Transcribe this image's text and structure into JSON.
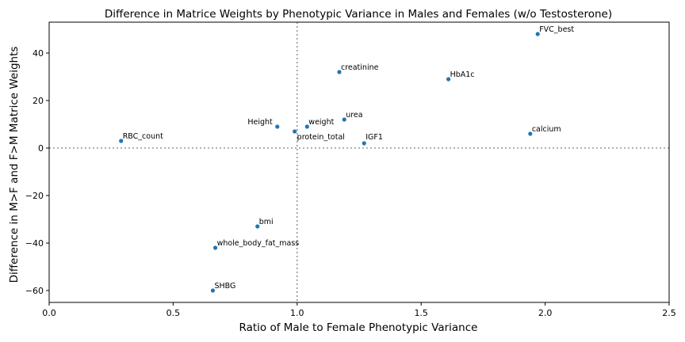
{
  "chart_data": {
    "type": "scatter",
    "title": "Difference in Matrice Weights by Phenotypic Variance in Males and Females (w/o Testosterone)",
    "xlabel": "Ratio of Male to Female Phenotypic Variance",
    "ylabel": "Difference in M>F and F>M Matrice Weights",
    "xlim": [
      0.0,
      2.5
    ],
    "ylim": [
      -65,
      53
    ],
    "xticks": [
      0.0,
      0.5,
      1.0,
      1.5,
      2.0,
      2.5
    ],
    "xtick_labels": [
      "0.0",
      "0.5",
      "1.0",
      "1.5",
      "2.0",
      "2.5"
    ],
    "yticks": [
      -60,
      -40,
      -20,
      0,
      20,
      40
    ],
    "ytick_labels": [
      "−60",
      "−40",
      "−20",
      "0",
      "20",
      "40"
    ],
    "reference_lines": {
      "vertical_x": 1.0,
      "horizontal_y": 0
    },
    "grid": false,
    "marker_color": "#1f77b4",
    "points": [
      {
        "label": "FVC_best",
        "x": 1.97,
        "y": 48
      },
      {
        "label": "creatinine",
        "x": 1.17,
        "y": 32
      },
      {
        "label": "HbA1c",
        "x": 1.61,
        "y": 29
      },
      {
        "label": "urea",
        "x": 1.19,
        "y": 12
      },
      {
        "label": "Height",
        "x": 0.92,
        "y": 9
      },
      {
        "label": "weight",
        "x": 1.04,
        "y": 9
      },
      {
        "label": "protein_total",
        "x": 0.99,
        "y": 7
      },
      {
        "label": "calcium",
        "x": 1.94,
        "y": 6
      },
      {
        "label": "RBC_count",
        "x": 0.29,
        "y": 3
      },
      {
        "label": "IGF1",
        "x": 1.27,
        "y": 2
      },
      {
        "label": "bmi",
        "x": 0.84,
        "y": -33
      },
      {
        "label": "whole_body_fat_mass",
        "x": 0.67,
        "y": -42
      },
      {
        "label": "SHBG",
        "x": 0.66,
        "y": -60
      }
    ]
  }
}
